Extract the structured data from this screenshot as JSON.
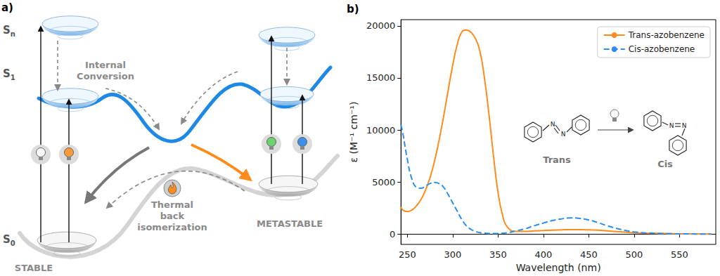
{
  "figure_a": {
    "panel_label": "a)",
    "states": [
      {
        "text": "S",
        "subscript": "n"
      },
      {
        "text": "S",
        "subscript": "1"
      },
      {
        "text": "S",
        "subscript": "0"
      }
    ],
    "internal_conversion": [
      "Internal",
      "Conversion"
    ],
    "thermal": [
      "Thermal",
      "back",
      "isomerization"
    ],
    "stable": "STABLE",
    "metastable": "METASTABLE"
  },
  "chart_data": {
    "type": "line",
    "title": "b)",
    "x_label": "Wavelength (nm)",
    "y_label": "ε (M⁻¹ cm⁻¹)",
    "x": [
      243,
      245,
      250,
      255,
      260,
      265,
      270,
      275,
      280,
      285,
      290,
      295,
      300,
      305,
      310,
      315,
      320,
      325,
      330,
      335,
      340,
      345,
      350,
      355,
      360,
      370,
      380,
      390,
      400,
      410,
      420,
      430,
      440,
      450,
      460,
      470,
      480,
      490,
      500,
      520,
      550,
      585
    ],
    "series": [
      {
        "name": "Trans-azobenzene",
        "color": "#ff8c1a",
        "line_style": "solid",
        "values": [
          2600,
          2300,
          2150,
          2300,
          2700,
          3300,
          4200,
          5400,
          7000,
          9000,
          11300,
          13800,
          16200,
          18200,
          19400,
          19600,
          19400,
          18800,
          17600,
          15000,
          11500,
          7500,
          4000,
          1800,
          700,
          250,
          250,
          300,
          330,
          370,
          400,
          420,
          420,
          400,
          360,
          300,
          240,
          180,
          120,
          60,
          15,
          0
        ]
      },
      {
        "name": "Cis-azobenzene",
        "color": "#2a8ff0",
        "line_style": "dashed",
        "values": [
          10500,
          9700,
          7200,
          5300,
          4500,
          4400,
          4600,
          4850,
          4950,
          4850,
          4500,
          3800,
          3000,
          2200,
          1400,
          800,
          450,
          250,
          130,
          80,
          50,
          40,
          50,
          70,
          120,
          300,
          500,
          800,
          1050,
          1300,
          1450,
          1550,
          1500,
          1350,
          1100,
          800,
          550,
          350,
          200,
          80,
          15,
          0
        ]
      }
    ],
    "xlim": [
      243,
      590
    ],
    "ylim": [
      -1000,
      20600
    ],
    "xticks": [
      250,
      300,
      350,
      400,
      450,
      500,
      550
    ],
    "yticks": [
      0,
      5000,
      10000,
      15000,
      20000
    ],
    "grid": false,
    "legend": "upper right"
  },
  "inset": {
    "from": "Trans",
    "to": "Cis",
    "atom": "N"
  }
}
